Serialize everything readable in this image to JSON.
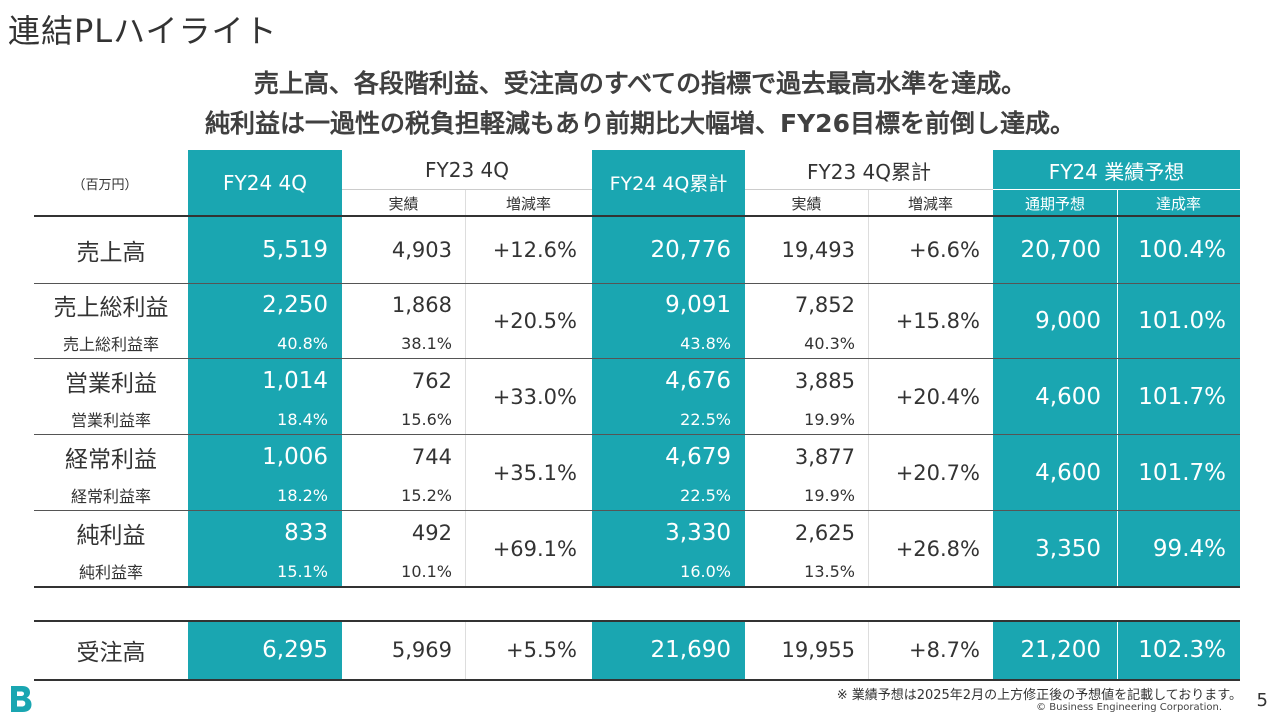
{
  "title": "連結PLハイライト",
  "headline": {
    "line1": "売上高、各段階利益、受注高のすべての指標で過去最高水準を達成。",
    "line2": "純利益は一過性の税負担軽減もあり前期比大幅増、FY26目標を前倒し達成。"
  },
  "table": {
    "unit": "（百万円）",
    "headers": {
      "fy24q4": "FY24 4Q",
      "fy23q4": "FY23 4Q",
      "fy24cum": "FY24 4Q累計",
      "fy23cum": "FY23 4Q累計",
      "forecast": "FY24 業績予想",
      "actual": "実績",
      "change": "増減率",
      "full_year": "通期予想",
      "achievement": "達成率"
    },
    "revenue": {
      "label": "売上高",
      "fy24q4": "5,519",
      "fy23q4": "4,903",
      "q_change": "+12.6%",
      "fy24cum": "20,776",
      "fy23cum": "19,493",
      "cum_change": "+6.6%",
      "forecast": "20,700",
      "achievement": "100.4%"
    },
    "gross": {
      "label": "売上総利益",
      "rate_label": "売上総利益率",
      "fy24q4": "2,250",
      "fy23q4": "1,868",
      "q_change": "+20.5%",
      "fy24q4_rate": "40.8%",
      "fy23q4_rate": "38.1%",
      "fy24cum": "9,091",
      "fy23cum": "7,852",
      "cum_change": "+15.8%",
      "fy24cum_rate": "43.8%",
      "fy23cum_rate": "40.3%",
      "forecast": "9,000",
      "achievement": "101.0%"
    },
    "operating": {
      "label": "営業利益",
      "rate_label": "営業利益率",
      "fy24q4": "1,014",
      "fy23q4": "762",
      "q_change": "+33.0%",
      "fy24q4_rate": "18.4%",
      "fy23q4_rate": "15.6%",
      "fy24cum": "4,676",
      "fy23cum": "3,885",
      "cum_change": "+20.4%",
      "fy24cum_rate": "22.5%",
      "fy23cum_rate": "19.9%",
      "forecast": "4,600",
      "achievement": "101.7%"
    },
    "ordinary": {
      "label": "経常利益",
      "rate_label": "経常利益率",
      "fy24q4": "1,006",
      "fy23q4": "744",
      "q_change": "+35.1%",
      "fy24q4_rate": "18.2%",
      "fy23q4_rate": "15.2%",
      "fy24cum": "4,679",
      "fy23cum": "3,877",
      "cum_change": "+20.7%",
      "fy24cum_rate": "22.5%",
      "fy23cum_rate": "19.9%",
      "forecast": "4,600",
      "achievement": "101.7%"
    },
    "net": {
      "label": "純利益",
      "rate_label": "純利益率",
      "fy24q4": "833",
      "fy23q4": "492",
      "q_change": "+69.1%",
      "fy24q4_rate": "15.1%",
      "fy23q4_rate": "10.1%",
      "fy24cum": "3,330",
      "fy23cum": "2,625",
      "cum_change": "+26.8%",
      "fy24cum_rate": "16.0%",
      "fy23cum_rate": "13.5%",
      "forecast": "3,350",
      "achievement": "99.4%"
    },
    "orders": {
      "label": "受注高",
      "fy24q4": "6,295",
      "fy23q4": "5,969",
      "q_change": "+5.5%",
      "fy24cum": "21,690",
      "fy23cum": "19,955",
      "cum_change": "+8.7%",
      "forecast": "21,200",
      "achievement": "102.3%"
    }
  },
  "footnote": "※ 業績予想は2025年2月の上方修正後の予想値を記載しております。",
  "copyright": "© Business Engineering Corporation.",
  "page_number": "5",
  "colors": {
    "teal": "#1aa6b1",
    "text": "#333333"
  },
  "logo_icon": "b-logo-icon"
}
